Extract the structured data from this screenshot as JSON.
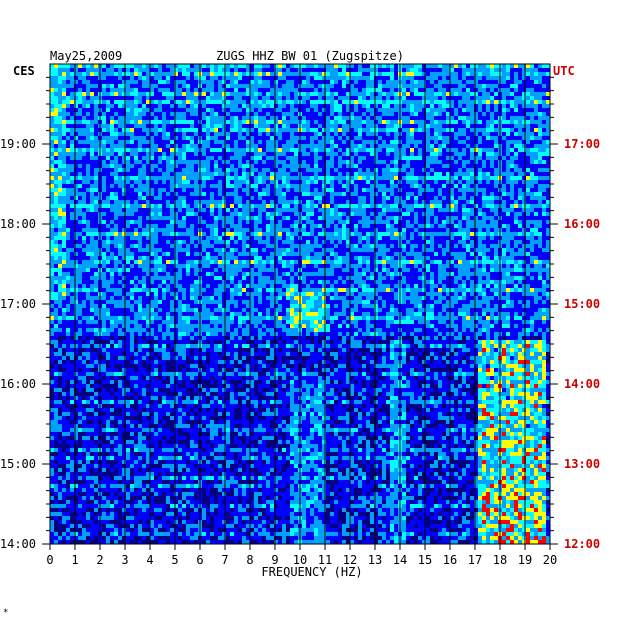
{
  "header": {
    "date": "May25,2009",
    "station": "ZUGS HHZ BW 01 (Zugspitze)"
  },
  "axes": {
    "left_zone": "CES",
    "right_zone": "UTC",
    "xlabel": "FREQUENCY (HZ)"
  },
  "footer_mark": "*",
  "colors": {
    "left_text": "#000000",
    "right_text": "#cc0000",
    "background_low": "#000080",
    "grid": "#000000"
  },
  "chart_data": {
    "type": "heatmap",
    "title": "ZUGS HHZ BW 01 (Zugspitze)",
    "date": "May25,2009",
    "xlabel": "FREQUENCY (HZ)",
    "x_ticks": [
      "0",
      "1",
      "2",
      "3",
      "4",
      "5",
      "6",
      "7",
      "8",
      "9",
      "10",
      "11",
      "12",
      "13",
      "14",
      "15",
      "16",
      "17",
      "18",
      "19",
      "20"
    ],
    "xlim": [
      0,
      20
    ],
    "left_ticks": [
      "19:00",
      "18:00",
      "17:00",
      "16:00",
      "15:00",
      "14:00"
    ],
    "left_tick_hours": [
      19,
      18,
      17,
      16,
      15,
      14
    ],
    "right_ticks": [
      "17:00",
      "16:00",
      "15:00",
      "14:00",
      "13:00",
      "12:00"
    ],
    "right_tick_hours": [
      17,
      16,
      15,
      14,
      13,
      12
    ],
    "time_range_ces": [
      14.0,
      19.85
    ],
    "colormap": [
      "#000080",
      "#0000ff",
      "#00a0ff",
      "#00ffff",
      "#ffff00",
      "#ff0000"
    ],
    "hotspots": [
      {
        "f": [
          17,
          19.7
        ],
        "t": [
          14.0,
          15.2
        ],
        "level": 0.85
      },
      {
        "f": [
          17,
          19.7
        ],
        "t": [
          15.2,
          16.5
        ],
        "level": 0.8
      },
      {
        "f": [
          9.5,
          11
        ],
        "t": [
          16.6,
          17.1
        ],
        "level": 0.75
      },
      {
        "f": [
          9.3,
          9.8
        ],
        "t": [
          17.0,
          17.2
        ],
        "level": 0.7
      },
      {
        "f": [
          13.5,
          14.2
        ],
        "t": [
          14.0,
          16.5
        ],
        "level": 0.55
      },
      {
        "f": [
          0,
          0.6
        ],
        "t": [
          17.0,
          19.85
        ],
        "level": 0.65
      },
      {
        "f": [
          9.5,
          11
        ],
        "t": [
          14.0,
          16.0
        ],
        "level": 0.5
      }
    ]
  }
}
